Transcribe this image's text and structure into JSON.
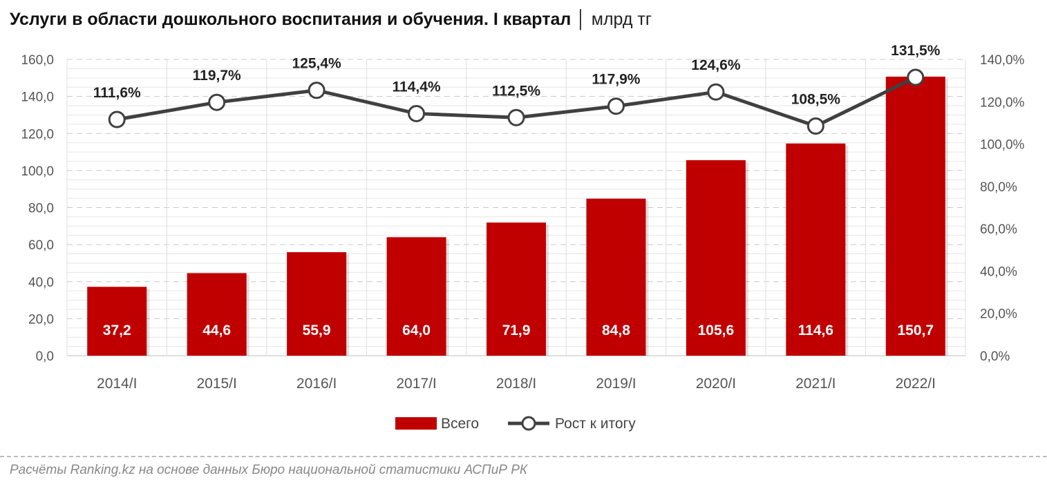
{
  "title": "Услуги в области дошкольного воспитания и обучения. I квартал",
  "unit": "│ млрд тг",
  "source": "Расчёты Ranking.kz на основе данных Бюро национальной статистики АСПиР РК",
  "chart_data": {
    "type": "bar+line",
    "categories": [
      "2014/I",
      "2015/I",
      "2016/I",
      "2017/I",
      "2018/I",
      "2019/I",
      "2020/I",
      "2021/I",
      "2022/I"
    ],
    "series": [
      {
        "name": "Всего",
        "type": "bar",
        "axis": "left",
        "color": "#c00000",
        "values": [
          37.2,
          44.6,
          55.9,
          64.0,
          71.9,
          84.8,
          105.6,
          114.6,
          150.7
        ],
        "labels": [
          "37,2",
          "44,6",
          "55,9",
          "64,0",
          "71,9",
          "84,8",
          "105,6",
          "114,6",
          "150,7"
        ]
      },
      {
        "name": "Рост к итогу",
        "type": "line",
        "axis": "right",
        "color": "#404040",
        "values": [
          111.6,
          119.7,
          125.4,
          114.4,
          112.5,
          117.9,
          124.6,
          108.5,
          131.5
        ],
        "labels": [
          "111,6%",
          "119,7%",
          "125,4%",
          "114,4%",
          "112,5%",
          "117,9%",
          "124,6%",
          "108,5%",
          "131,5%"
        ]
      }
    ],
    "left_axis": {
      "ylim": [
        0,
        160
      ],
      "ticks": [
        "0,0",
        "20,0",
        "40,0",
        "60,0",
        "80,0",
        "100,0",
        "120,0",
        "140,0",
        "160,0"
      ]
    },
    "right_axis": {
      "ylim": [
        0,
        140
      ],
      "ticks": [
        "0,0%",
        "20,0%",
        "40,0%",
        "60,0%",
        "80,0%",
        "100,0%",
        "120,0%",
        "140,0%"
      ]
    },
    "grid": true,
    "legend": "bottom"
  }
}
